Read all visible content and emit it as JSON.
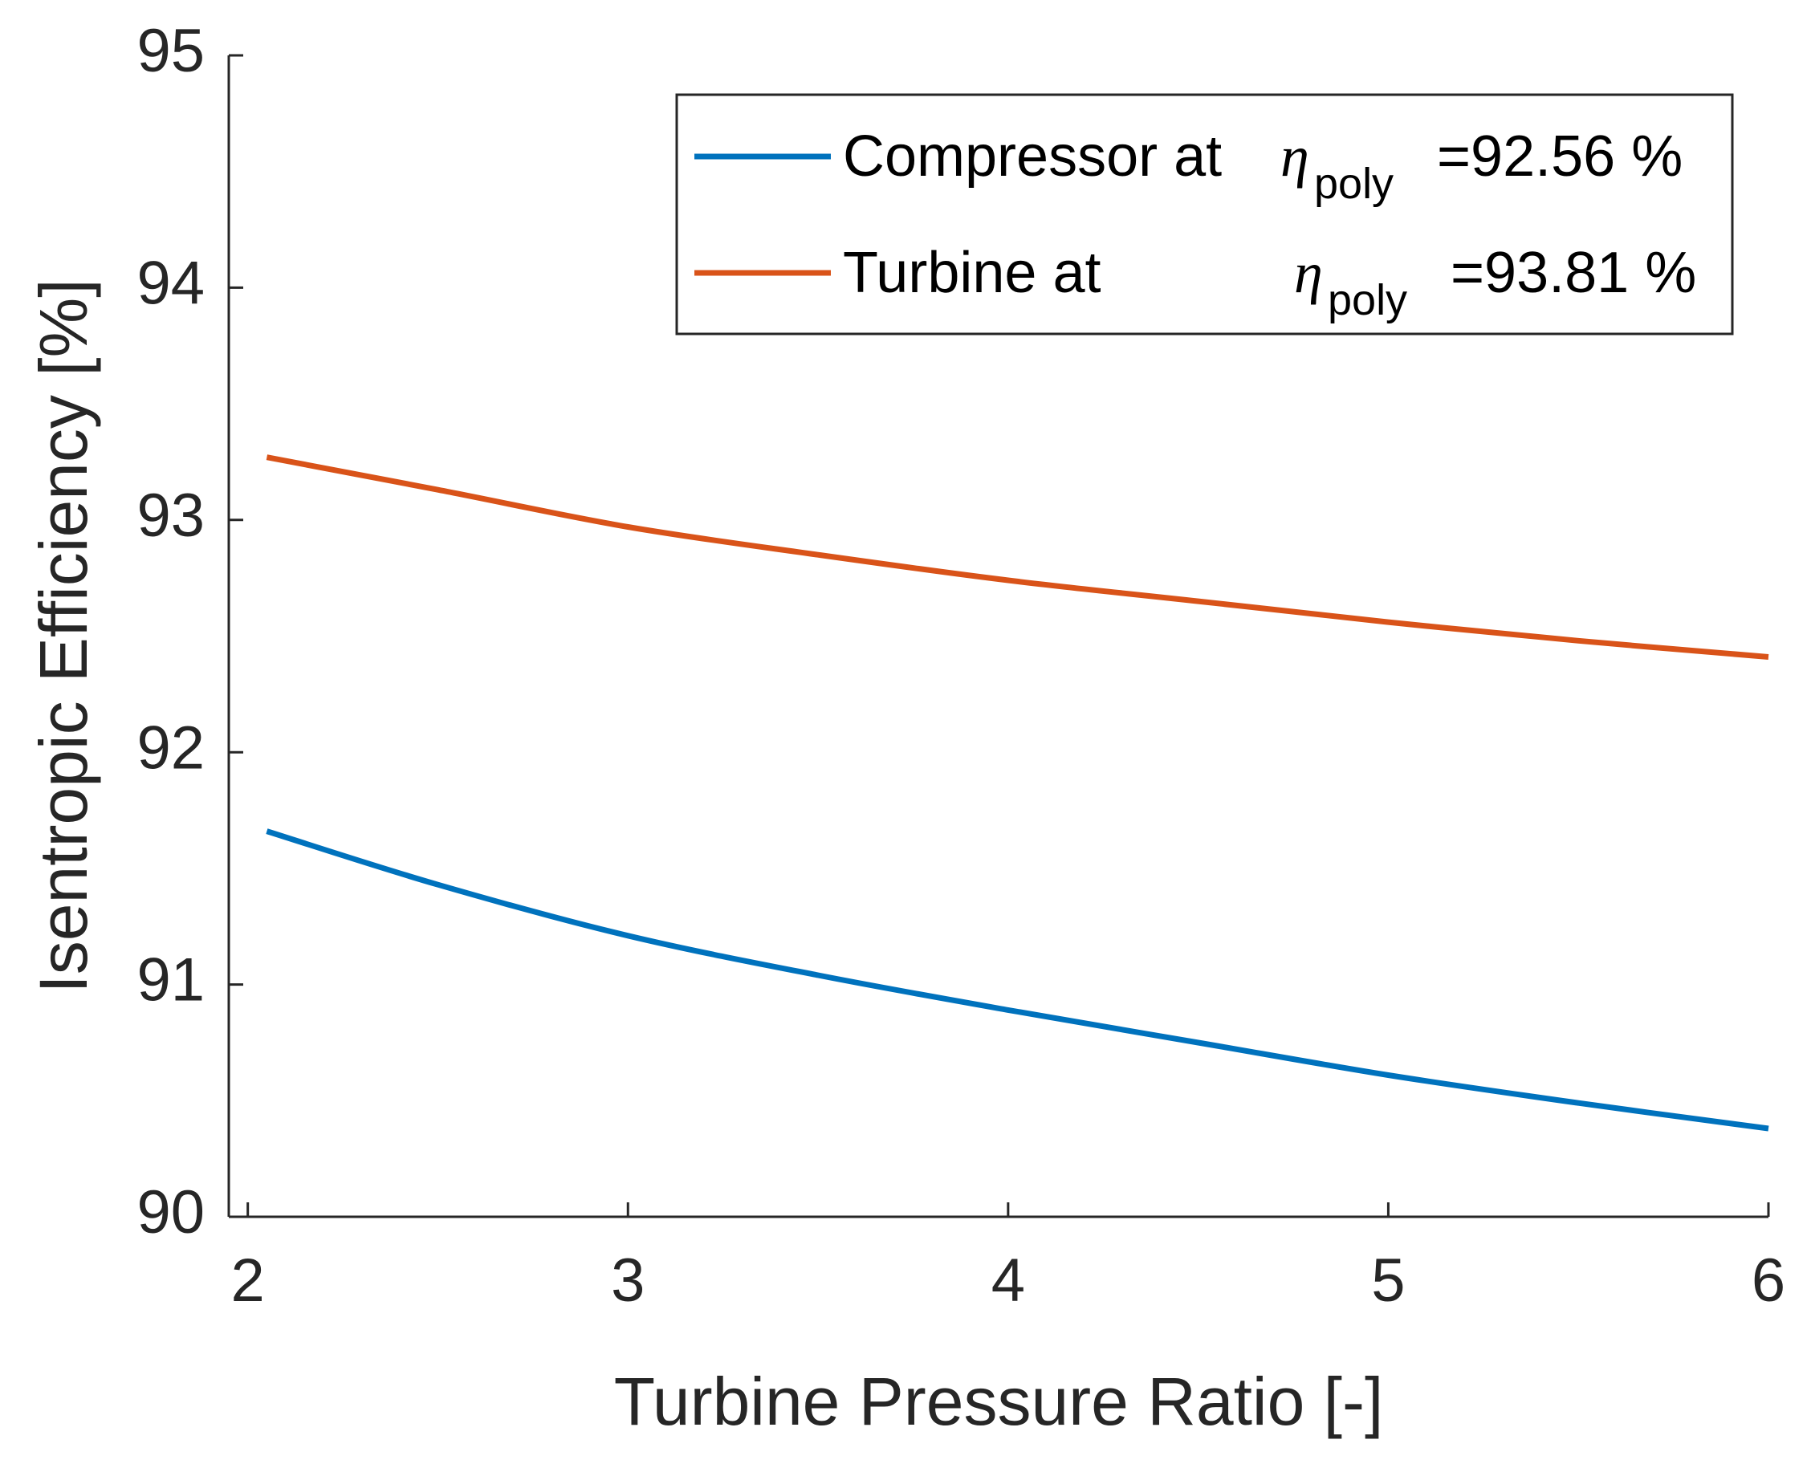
{
  "chart_data": {
    "type": "line",
    "title": "",
    "xlabel": "Turbine Pressure Ratio [-]",
    "ylabel": "Isentropic Efficiency [%]",
    "xlim": [
      1.95,
      6
    ],
    "ylim": [
      90,
      95
    ],
    "xticks": [
      2,
      3,
      4,
      5,
      6
    ],
    "yticks": [
      90,
      91,
      92,
      93,
      94,
      95
    ],
    "grid": false,
    "legend_position": "top-right",
    "x": [
      2.05,
      2.5,
      3.0,
      3.5,
      4.0,
      4.5,
      5.0,
      5.5,
      6.0
    ],
    "series": [
      {
        "name": "Compressor",
        "legend_prefix": "Compressor at",
        "eta_symbol": "η",
        "eta_subscript": "poly",
        "legend_value": "=92.56 %",
        "color": "#0072BD",
        "values": [
          91.66,
          91.43,
          91.21,
          91.04,
          90.89,
          90.75,
          90.61,
          90.49,
          90.38
        ]
      },
      {
        "name": "Turbine",
        "legend_prefix": "Turbine at",
        "eta_symbol": "η",
        "eta_subscript": "poly",
        "legend_value": "=93.81 %",
        "color": "#D95319",
        "values": [
          93.27,
          93.13,
          92.97,
          92.85,
          92.74,
          92.65,
          92.56,
          92.48,
          92.41
        ]
      }
    ]
  }
}
